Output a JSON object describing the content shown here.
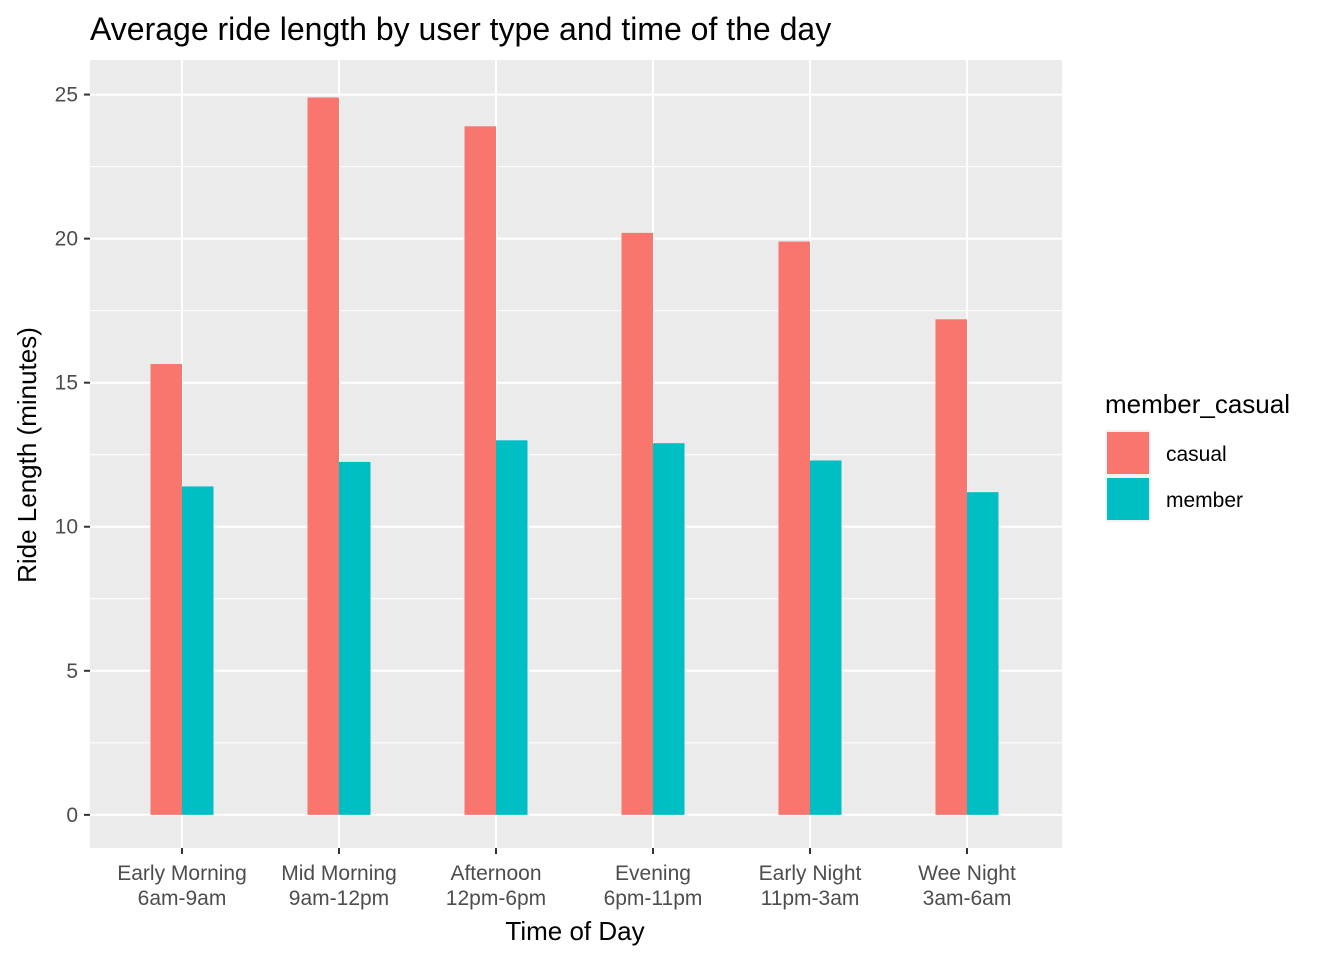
{
  "chart_data": {
    "type": "bar",
    "title": "Average ride length by user type and time of the day",
    "xlabel": "Time of Day",
    "ylabel": "Ride Length (minutes)",
    "categories": [
      [
        "Early Morning",
        "6am-9am"
      ],
      [
        "Mid Morning",
        "9am-12pm"
      ],
      [
        "Afternoon",
        "12pm-6pm"
      ],
      [
        "Evening",
        "6pm-11pm"
      ],
      [
        "Early Night",
        "11pm-3am"
      ],
      [
        "Wee Night",
        "3am-6am"
      ]
    ],
    "series": [
      {
        "name": "casual",
        "color": "#F8766D",
        "values": [
          15.65,
          24.9,
          23.9,
          20.2,
          19.9,
          17.2
        ]
      },
      {
        "name": "member",
        "color": "#00BFC4",
        "values": [
          11.4,
          12.25,
          13.0,
          12.9,
          12.3,
          11.2
        ]
      }
    ],
    "ylim": [
      -1.15,
      26.2
    ],
    "yticks": [
      0,
      5,
      10,
      15,
      20,
      25
    ],
    "legend": {
      "title": "member_casual",
      "position": "right"
    },
    "panel_background": "#EBEBEB",
    "grid": true
  }
}
